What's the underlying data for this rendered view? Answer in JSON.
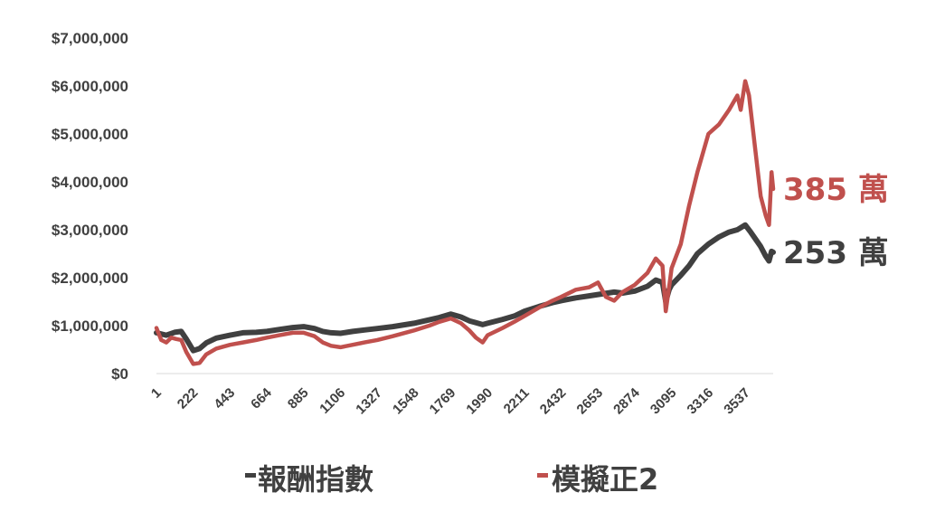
{
  "chart_data": {
    "type": "line",
    "y_tick_labels": [
      "$0",
      "$1,000,000",
      "$2,000,000",
      "$3,000,000",
      "$4,000,000",
      "$5,000,000",
      "$6,000,000",
      "$7,000,000"
    ],
    "y_tick_values": [
      0,
      1000000,
      2000000,
      3000000,
      4000000,
      5000000,
      6000000,
      7000000
    ],
    "ylim": [
      0,
      7000000
    ],
    "x_tick_labels": [
      "1",
      "222",
      "443",
      "664",
      "885",
      "1106",
      "1327",
      "1548",
      "1769",
      "1990",
      "2211",
      "2432",
      "2653",
      "2874",
      "3095",
      "3316",
      "3537"
    ],
    "x_tick_values": [
      1,
      222,
      443,
      664,
      885,
      1106,
      1327,
      1548,
      1769,
      1990,
      2211,
      2432,
      2653,
      2874,
      3095,
      3316,
      3537
    ],
    "xlim": [
      1,
      3705
    ],
    "grid": false,
    "legend_position": "bottom",
    "series": [
      {
        "name": "報酬指數",
        "color": "#404040",
        "end_label": "253 萬",
        "points": [
          [
            1,
            850000
          ],
          [
            60,
            800000
          ],
          [
            110,
            860000
          ],
          [
            150,
            880000
          ],
          [
            180,
            720000
          ],
          [
            222,
            480000
          ],
          [
            260,
            520000
          ],
          [
            300,
            640000
          ],
          [
            360,
            740000
          ],
          [
            443,
            800000
          ],
          [
            520,
            850000
          ],
          [
            600,
            860000
          ],
          [
            664,
            880000
          ],
          [
            740,
            920000
          ],
          [
            820,
            960000
          ],
          [
            885,
            980000
          ],
          [
            950,
            940000
          ],
          [
            1000,
            880000
          ],
          [
            1050,
            850000
          ],
          [
            1106,
            840000
          ],
          [
            1180,
            880000
          ],
          [
            1250,
            910000
          ],
          [
            1327,
            940000
          ],
          [
            1420,
            980000
          ],
          [
            1548,
            1050000
          ],
          [
            1640,
            1120000
          ],
          [
            1700,
            1170000
          ],
          [
            1769,
            1240000
          ],
          [
            1830,
            1180000
          ],
          [
            1880,
            1100000
          ],
          [
            1920,
            1060000
          ],
          [
            1960,
            1020000
          ],
          [
            1990,
            1050000
          ],
          [
            2080,
            1130000
          ],
          [
            2150,
            1200000
          ],
          [
            2211,
            1300000
          ],
          [
            2300,
            1400000
          ],
          [
            2380,
            1480000
          ],
          [
            2432,
            1520000
          ],
          [
            2520,
            1580000
          ],
          [
            2600,
            1620000
          ],
          [
            2653,
            1650000
          ],
          [
            2750,
            1700000
          ],
          [
            2800,
            1680000
          ],
          [
            2874,
            1720000
          ],
          [
            2950,
            1820000
          ],
          [
            3000,
            1950000
          ],
          [
            3040,
            1900000
          ],
          [
            3060,
            1500000
          ],
          [
            3080,
            1750000
          ],
          [
            3095,
            1850000
          ],
          [
            3150,
            2050000
          ],
          [
            3200,
            2250000
          ],
          [
            3250,
            2500000
          ],
          [
            3316,
            2700000
          ],
          [
            3380,
            2850000
          ],
          [
            3440,
            2950000
          ],
          [
            3490,
            3000000
          ],
          [
            3537,
            3100000
          ],
          [
            3570,
            2950000
          ],
          [
            3600,
            2800000
          ],
          [
            3630,
            2650000
          ],
          [
            3660,
            2450000
          ],
          [
            3680,
            2350000
          ],
          [
            3695,
            2550000
          ],
          [
            3705,
            2530000
          ]
        ]
      },
      {
        "name": "模擬正2",
        "color": "#c0504d",
        "end_label": "385 萬",
        "points": [
          [
            1,
            950000
          ],
          [
            30,
            700000
          ],
          [
            60,
            650000
          ],
          [
            90,
            750000
          ],
          [
            120,
            720000
          ],
          [
            150,
            700000
          ],
          [
            180,
            450000
          ],
          [
            222,
            200000
          ],
          [
            260,
            220000
          ],
          [
            300,
            400000
          ],
          [
            360,
            520000
          ],
          [
            443,
            600000
          ],
          [
            520,
            650000
          ],
          [
            600,
            700000
          ],
          [
            664,
            750000
          ],
          [
            740,
            800000
          ],
          [
            820,
            850000
          ],
          [
            885,
            850000
          ],
          [
            950,
            780000
          ],
          [
            1000,
            650000
          ],
          [
            1050,
            580000
          ],
          [
            1106,
            550000
          ],
          [
            1180,
            600000
          ],
          [
            1250,
            650000
          ],
          [
            1327,
            700000
          ],
          [
            1420,
            780000
          ],
          [
            1548,
            900000
          ],
          [
            1640,
            1000000
          ],
          [
            1700,
            1080000
          ],
          [
            1769,
            1150000
          ],
          [
            1830,
            1050000
          ],
          [
            1880,
            900000
          ],
          [
            1920,
            750000
          ],
          [
            1960,
            650000
          ],
          [
            1990,
            800000
          ],
          [
            2080,
            950000
          ],
          [
            2150,
            1080000
          ],
          [
            2211,
            1200000
          ],
          [
            2300,
            1380000
          ],
          [
            2380,
            1520000
          ],
          [
            2432,
            1600000
          ],
          [
            2520,
            1750000
          ],
          [
            2600,
            1800000
          ],
          [
            2653,
            1900000
          ],
          [
            2700,
            1600000
          ],
          [
            2750,
            1520000
          ],
          [
            2800,
            1700000
          ],
          [
            2874,
            1850000
          ],
          [
            2950,
            2100000
          ],
          [
            3000,
            2400000
          ],
          [
            3040,
            2250000
          ],
          [
            3060,
            1300000
          ],
          [
            3080,
            1800000
          ],
          [
            3095,
            2200000
          ],
          [
            3150,
            2700000
          ],
          [
            3200,
            3500000
          ],
          [
            3250,
            4200000
          ],
          [
            3316,
            5000000
          ],
          [
            3380,
            5200000
          ],
          [
            3440,
            5500000
          ],
          [
            3490,
            5800000
          ],
          [
            3510,
            5500000
          ],
          [
            3537,
            6100000
          ],
          [
            3560,
            5800000
          ],
          [
            3590,
            4900000
          ],
          [
            3610,
            4300000
          ],
          [
            3630,
            3700000
          ],
          [
            3660,
            3300000
          ],
          [
            3680,
            3100000
          ],
          [
            3695,
            4200000
          ],
          [
            3705,
            3850000
          ]
        ]
      }
    ]
  }
}
